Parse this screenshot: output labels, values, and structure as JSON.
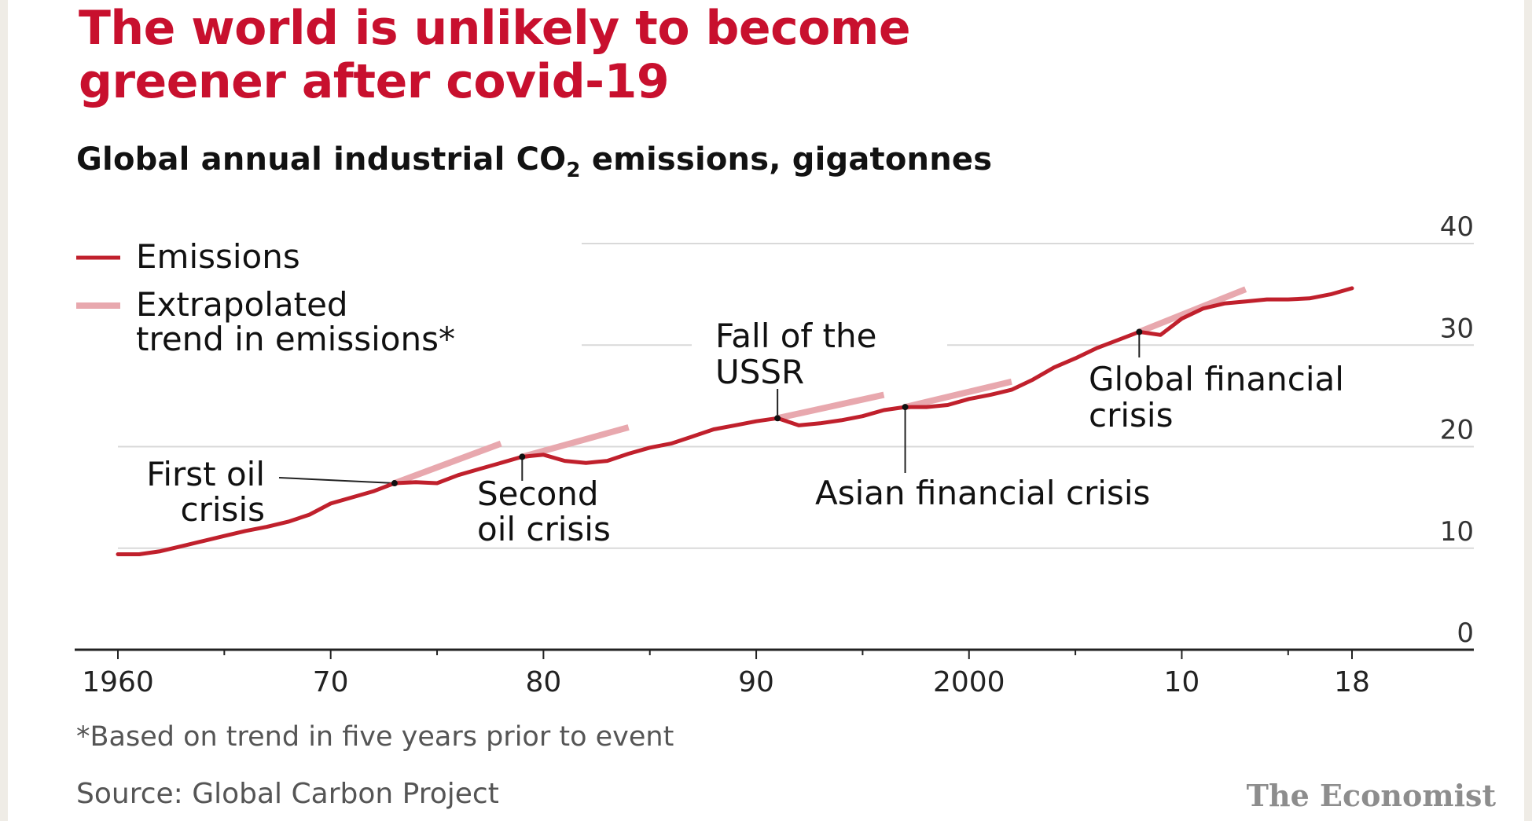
{
  "header": {
    "title_line1": "The world is unlikely to become",
    "title_line2": "greener after covid-19",
    "subtitle_pre": "Global annual industrial CO",
    "subtitle_sub": "2",
    "subtitle_post": " emissions, gigatonnes"
  },
  "footer": {
    "footnote": "*Based on trend in five years prior to event",
    "source": "Source: Global Carbon Project",
    "brand": "The Economist"
  },
  "colors": {
    "title": "#c8102e",
    "emissions": "#c0202c",
    "trend": "#e8a8ae",
    "grid": "#d9d9d9",
    "axis": "#222222"
  },
  "chart_data": {
    "type": "line",
    "ylim": [
      0,
      40
    ],
    "yticks": [
      0,
      10,
      20,
      30,
      40
    ],
    "ytick_labels": [
      "0",
      "10",
      "20",
      "30",
      "40"
    ],
    "y_axis_side": "right",
    "xlim": [
      1960,
      2018
    ],
    "xtick_labels": [
      {
        "x": 1960,
        "label": "1960"
      },
      {
        "x": 1970,
        "label": "70"
      },
      {
        "x": 1980,
        "label": "80"
      },
      {
        "x": 1990,
        "label": "90"
      },
      {
        "x": 2000,
        "label": "2000"
      },
      {
        "x": 2010,
        "label": "10"
      },
      {
        "x": 2018,
        "label": "18"
      }
    ],
    "grid": true,
    "legend": {
      "placement": "top-left",
      "entries": [
        {
          "key": "emissions",
          "label": "Emissions"
        },
        {
          "key": "trend",
          "label_line1": "Extrapolated",
          "label_line2": "trend in emissions*"
        }
      ]
    },
    "series": [
      {
        "name": "Emissions",
        "key": "emissions",
        "x": [
          1960,
          1961,
          1962,
          1963,
          1964,
          1965,
          1966,
          1967,
          1968,
          1969,
          1970,
          1971,
          1972,
          1973,
          1974,
          1975,
          1976,
          1977,
          1978,
          1979,
          1980,
          1981,
          1982,
          1983,
          1984,
          1985,
          1986,
          1987,
          1988,
          1989,
          1990,
          1991,
          1992,
          1993,
          1994,
          1995,
          1996,
          1997,
          1998,
          1999,
          2000,
          2001,
          2002,
          2003,
          2004,
          2005,
          2006,
          2007,
          2008,
          2009,
          2010,
          2011,
          2012,
          2013,
          2014,
          2015,
          2016,
          2017,
          2018
        ],
        "y": [
          9.4,
          9.4,
          9.7,
          10.2,
          10.7,
          11.2,
          11.7,
          12.1,
          12.6,
          13.3,
          14.4,
          15.0,
          15.6,
          16.4,
          16.5,
          16.4,
          17.2,
          17.8,
          18.4,
          19.0,
          19.2,
          18.6,
          18.4,
          18.6,
          19.3,
          19.9,
          20.3,
          21.0,
          21.7,
          22.1,
          22.5,
          22.8,
          22.1,
          22.3,
          22.6,
          23.0,
          23.6,
          23.9,
          23.9,
          24.1,
          24.7,
          25.1,
          25.6,
          26.6,
          27.8,
          28.7,
          29.7,
          30.5,
          31.3,
          31.0,
          32.6,
          33.6,
          34.1,
          34.3,
          34.5,
          34.5,
          34.6,
          35.0,
          35.6
        ]
      },
      {
        "name": "Extrapolated trend in emissions*",
        "key": "trend",
        "segments": [
          {
            "x": [
              1973,
              1978
            ],
            "y": [
              16.4,
              20.3
            ]
          },
          {
            "x": [
              1979,
              1984
            ],
            "y": [
              19.0,
              21.9
            ]
          },
          {
            "x": [
              1991,
              1996
            ],
            "y": [
              22.8,
              25.1
            ]
          },
          {
            "x": [
              1997,
              2002
            ],
            "y": [
              23.9,
              26.4
            ]
          },
          {
            "x": [
              2008,
              2013
            ],
            "y": [
              31.3,
              35.5
            ]
          }
        ]
      }
    ],
    "annotations": [
      {
        "key": "first-oil",
        "x": 1973,
        "y": 16.4,
        "line1": "First oil",
        "line2": "crisis"
      },
      {
        "key": "second-oil",
        "x": 1979,
        "y": 19.0,
        "line1": "Second",
        "line2": "oil crisis"
      },
      {
        "key": "ussr",
        "x": 1991,
        "y": 22.8,
        "line1": "Fall of the",
        "line2": "USSR"
      },
      {
        "key": "asian",
        "x": 1997,
        "y": 23.9,
        "line1": "Asian financial crisis",
        "line2": ""
      },
      {
        "key": "gfc",
        "x": 2008,
        "y": 31.3,
        "line1": "Global financial",
        "line2": "crisis"
      }
    ]
  }
}
